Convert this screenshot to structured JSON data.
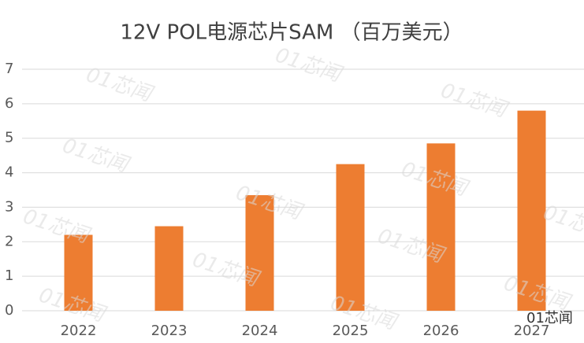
{
  "chart_data": {
    "type": "bar",
    "title": "12V POL电源芯片SAM （百万美元）",
    "categories": [
      "2022",
      "2023",
      "2024",
      "2025",
      "2026",
      "2027"
    ],
    "values": [
      2.2,
      2.45,
      3.35,
      4.25,
      4.85,
      5.8
    ],
    "color": "#ed7d31",
    "ylim": [
      0,
      7
    ],
    "yticks": [
      0,
      1,
      2,
      3,
      4,
      5,
      6,
      7
    ],
    "grid": true,
    "watermark": "01芯闻"
  }
}
